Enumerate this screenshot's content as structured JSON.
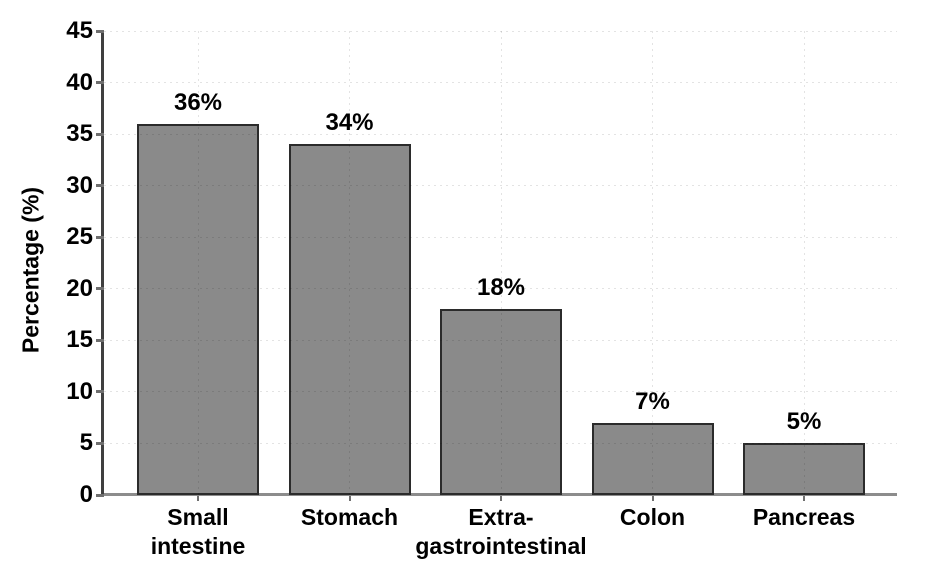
{
  "chart_data": {
    "type": "bar",
    "title": "",
    "categories": [
      "Small intestine",
      "Stomach",
      "Extra-gastrointestinal",
      "Colon",
      "Pancreas"
    ],
    "category_labels": [
      "Small\nintestine",
      "Stomach",
      "Extra-\ngastrointestinal",
      "Colon",
      "Pancreas"
    ],
    "values": [
      36,
      34,
      18,
      7,
      5
    ],
    "value_labels": [
      "36%",
      "34%",
      "18%",
      "7%",
      "5%"
    ],
    "xlabel": "",
    "ylabel": "Percentage (%)",
    "ylim": [
      0,
      45
    ],
    "yticks": [
      0,
      5,
      10,
      15,
      20,
      25,
      30,
      35,
      40,
      45
    ],
    "grid": "dashed, horizontal at each y tick and vertical at each bar center",
    "legend": "none",
    "colors": {
      "bar_fill": "#8a8a8a",
      "bar_border": "#2b2b2b",
      "y_axis_line": "#3f3f3f",
      "x_axis_line": "#8c8c8c",
      "tick_mark": "#6f6f6f",
      "gridline": "rgba(0,0,0,0.11)",
      "text": "#000000",
      "background": "#ffffff"
    }
  }
}
